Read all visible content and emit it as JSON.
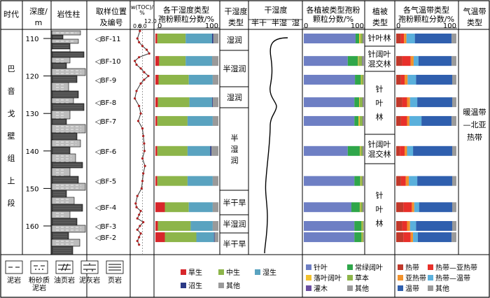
{
  "headers": {
    "era": "时代",
    "depth1": "深度/",
    "depth2": "m",
    "lithology": "岩性柱",
    "sample1": "取样位置",
    "sample2": "及编号",
    "toc": "w(TOC)/",
    "toc_unit": "%",
    "drywet1": "各干湿度类型",
    "drywet2": "孢粉颗粒分数/%",
    "dwtype1": "干湿度",
    "dwtype2": "类型",
    "dwdegree": "干湿度",
    "dw_axis_1": "半干",
    "dw_axis_2": "半湿",
    "dw_axis_3": "湿",
    "veg1": "各植被类型孢粉",
    "veg2": "颗粒分数/%",
    "vegtype1": "植被",
    "vegtype2": "类型",
    "therm1": "各气温带类型",
    "therm2": "孢粉颗粒分数/%",
    "clim1": "气温带",
    "clim2": "类型"
  },
  "axes": {
    "zero": "0",
    "hundred": "100",
    "toc_min": "0.0",
    "toc_mid": "6.0",
    "toc_max": "12.0"
  },
  "formation": [
    "巴",
    "音",
    "戈",
    "壁",
    "组",
    "上",
    "段"
  ],
  "depth_ticks": [
    110,
    120,
    130,
    140,
    150,
    160
  ],
  "samples": [
    "BF-11",
    "BF-10",
    "BF-9",
    "BF-8",
    "BF-7",
    "BF-6",
    "BF-5",
    "BF-4",
    "BF-3",
    "BF-2"
  ],
  "sample_marker": "◁",
  "dry_wet_zones": [
    "湿润",
    "半湿润",
    "湿润",
    "半湿润",
    "半干旱",
    "半湿润",
    "半干旱"
  ],
  "vegetation_zones": [
    "针叶林",
    "针阔叶混交林",
    "针叶林",
    "针阔叶混交林",
    "针叶林"
  ],
  "climate_zone": "暖温带—北亚热带",
  "chart_data": {
    "type": "bar",
    "categories": [
      "BF-11",
      "BF-10",
      "BF-9",
      "BF-8",
      "BF-7",
      "BF-6",
      "BF-5",
      "BF-4",
      "BF-3",
      "BF-2"
    ],
    "depths": [
      110,
      116,
      121,
      127,
      132,
      140,
      148,
      155,
      160,
      163
    ],
    "toc": {
      "depths": [
        108,
        110,
        111,
        112,
        113,
        114,
        115,
        116,
        117,
        118,
        119,
        120,
        121,
        122,
        124,
        126,
        128,
        130,
        132,
        134,
        136,
        138,
        140,
        142,
        144,
        146,
        148,
        150,
        152,
        154,
        155,
        156,
        157,
        158,
        159,
        160,
        161,
        162,
        163,
        164,
        165
      ],
      "values": [
        4.5,
        3.0,
        4.0,
        6.0,
        8.5,
        10.0,
        4.0,
        1.5,
        2.5,
        5.0,
        7.0,
        9.5,
        7.0,
        5.0,
        2.5,
        1.5,
        4.0,
        5.0,
        3.5,
        6.0,
        6.5,
        7.0,
        7.2,
        6.0,
        7.5,
        6.5,
        6.0,
        5.5,
        3.0,
        2.0,
        2.5,
        5.0,
        4.0,
        3.0,
        6.5,
        4.5,
        3.0,
        5.0,
        4.0,
        3.0,
        4.0
      ]
    },
    "dry_wet": {
      "series": [
        {
          "name": "旱生",
          "color": "#d7262b",
          "values": [
            3,
            6,
            5,
            4,
            3,
            3,
            3,
            15,
            4,
            15
          ]
        },
        {
          "name": "中生",
          "color": "#8db54a",
          "values": [
            45,
            42,
            48,
            50,
            48,
            48,
            48,
            38,
            52,
            50
          ]
        },
        {
          "name": "湿生",
          "color": "#5aa3c0",
          "values": [
            42,
            42,
            38,
            36,
            40,
            36,
            40,
            38,
            35,
            28
          ]
        },
        {
          "name": "沼生",
          "color": "#2b3a86",
          "values": [
            2,
            0,
            0,
            1,
            0,
            2,
            0,
            0,
            0,
            1
          ]
        },
        {
          "name": "其他",
          "color": "#9a9a9a",
          "values": [
            8,
            10,
            9,
            9,
            9,
            11,
            9,
            9,
            9,
            6
          ]
        }
      ]
    },
    "vegetation": {
      "series": [
        {
          "name": "针叶",
          "color": "#6e7fc4",
          "values": [
            86,
            73,
            85,
            84,
            84,
            73,
            84,
            79,
            84,
            84
          ]
        },
        {
          "name": "常绿阔叶",
          "color": "#2fa64a",
          "values": [
            6,
            17,
            10,
            8,
            7,
            20,
            10,
            14,
            12,
            12
          ]
        },
        {
          "name": "落叶阔叶",
          "color": "#f2c12e",
          "values": [
            2,
            1,
            1,
            1,
            2,
            1,
            1,
            1,
            1,
            1
          ]
        },
        {
          "name": "草本",
          "color": "#8db54a",
          "values": [
            4,
            6,
            3,
            5,
            5,
            4,
            3,
            4,
            2,
            2
          ]
        },
        {
          "name": "灌木",
          "color": "#6a4ea0",
          "values": [
            1,
            1,
            0,
            1,
            1,
            1,
            1,
            1,
            0,
            0
          ]
        },
        {
          "name": "其他",
          "color": "#9a9a9a",
          "values": [
            1,
            2,
            1,
            1,
            1,
            1,
            1,
            1,
            1,
            1
          ]
        }
      ]
    },
    "thermal": {
      "series": [
        {
          "name": "热带",
          "color": "#c0392b",
          "values": [
            8,
            10,
            8,
            10,
            8,
            6,
            8,
            12,
            10,
            12
          ]
        },
        {
          "name": "热带—亚热带",
          "color": "#e8302a",
          "values": [
            5,
            14,
            6,
            8,
            10,
            8,
            8,
            14,
            8,
            12
          ]
        },
        {
          "name": "亚热带",
          "color": "#f2922c",
          "values": [
            4,
            5,
            5,
            5,
            4,
            4,
            5,
            4,
            5,
            4
          ]
        },
        {
          "name": "热带—温带",
          "color": "#5ab0dc",
          "values": [
            14,
            8,
            14,
            12,
            20,
            10,
            14,
            8,
            10,
            8
          ]
        },
        {
          "name": "温带",
          "color": "#2f5fae",
          "values": [
            61,
            55,
            60,
            58,
            50,
            65,
            58,
            55,
            60,
            56
          ]
        },
        {
          "name": "其他",
          "color": "#9a9a9a",
          "values": [
            8,
            8,
            7,
            7,
            8,
            7,
            7,
            7,
            7,
            8
          ]
        }
      ]
    }
  },
  "legend": {
    "lithology": [
      {
        "name": "泥岩",
        "lines": [
          "泥岩"
        ]
      },
      {
        "name": "粉砂质泥岩",
        "lines": [
          "粉砂质",
          "泥岩"
        ]
      },
      {
        "name": "油页岩",
        "lines": [
          "油页岩"
        ]
      },
      {
        "name": "泥灰岩",
        "lines": [
          "泥灰岩"
        ]
      },
      {
        "name": "页岩",
        "lines": [
          "页岩"
        ]
      }
    ]
  }
}
